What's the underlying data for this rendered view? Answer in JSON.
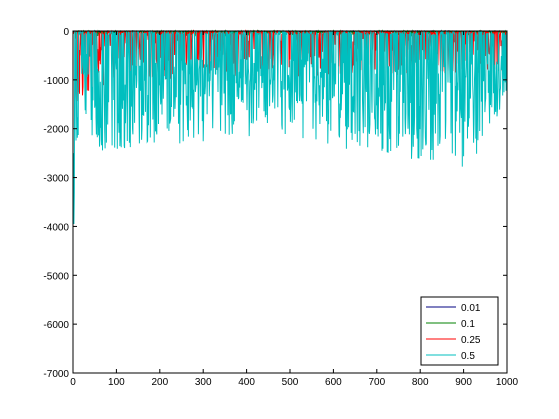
{
  "chart_data": {
    "type": "line",
    "title": "",
    "xlabel": "",
    "ylabel": "",
    "xlim": [
      0,
      1000
    ],
    "ylim": [
      -7000,
      0
    ],
    "x_ticks": [
      0,
      100,
      200,
      300,
      400,
      500,
      600,
      700,
      800,
      900,
      1000
    ],
    "y_ticks": [
      0,
      -1000,
      -2000,
      -3000,
      -4000,
      -5000,
      -6000,
      -7000
    ],
    "grid": false,
    "legend_position": "bottom-right",
    "n_points": 1000,
    "series": [
      {
        "name": "0.01",
        "color": "#000080",
        "values_approx": "fluctuates between about -50 and -300; dips near -250 around x=5",
        "keypoints": [
          [
            0,
            -260
          ],
          [
            3,
            -140
          ],
          [
            10,
            -60
          ],
          [
            40,
            -40
          ],
          [
            1000,
            -30
          ]
        ]
      },
      {
        "name": "0.1",
        "color": "#008000",
        "values_approx": "mostly between 0 and -600",
        "keypoints": [
          [
            0,
            -300
          ],
          [
            5,
            -200
          ],
          [
            30,
            -150
          ],
          [
            100,
            -100
          ],
          [
            1000,
            -80
          ]
        ]
      },
      {
        "name": "0.25",
        "color": "#ff0000",
        "values_approx": "frequent spikes to about -400 to -1200",
        "keypoints": [
          [
            0,
            -800
          ],
          [
            5,
            -1200
          ],
          [
            20,
            -800
          ],
          [
            100,
            -600
          ],
          [
            1000,
            -500
          ]
        ]
      },
      {
        "name": "0.5",
        "color": "#00bfbf",
        "values_approx": "initial dip near -3950 at x=2, then spikes mostly -100 to -1600, deepest -2200 near x=920",
        "keypoints": [
          [
            1,
            -2500
          ],
          [
            2,
            -3950
          ],
          [
            5,
            -2000
          ],
          [
            20,
            -1300
          ],
          [
            40,
            -1700
          ],
          [
            65,
            -1900
          ],
          [
            460,
            -1650
          ],
          [
            920,
            -2200
          ],
          [
            1000,
            -1000
          ]
        ]
      }
    ]
  }
}
